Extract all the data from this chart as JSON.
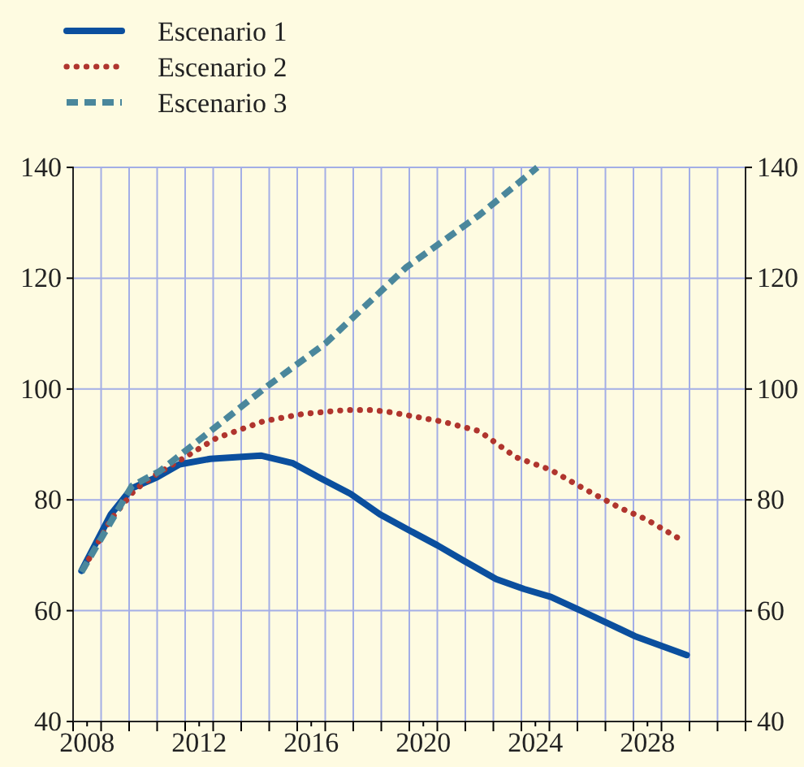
{
  "chart_data": {
    "type": "line",
    "xlim": [
      2007.5,
      2031.5
    ],
    "ylim": [
      40,
      140
    ],
    "yticks": [
      40,
      60,
      80,
      100,
      120,
      140
    ],
    "y2lim": [
      40,
      140
    ],
    "y2ticks": [
      40,
      60,
      80,
      100,
      120,
      140
    ],
    "xticks": [
      {
        "value": 2007.5,
        "label": null
      },
      2008,
      {
        "value": 2008.5,
        "label": null
      },
      {
        "value": 2009.5,
        "label": null
      },
      {
        "value": 2010.5,
        "label": null
      },
      {
        "value": 2011.5,
        "label": null
      },
      2012,
      {
        "value": 2012.5,
        "label": null
      },
      {
        "value": 2013.5,
        "label": null
      },
      {
        "value": 2014.5,
        "label": null
      },
      {
        "value": 2015.5,
        "label": null
      },
      2016,
      {
        "value": 2016.5,
        "label": null
      },
      {
        "value": 2017.5,
        "label": null
      },
      {
        "value": 2018.5,
        "label": null
      },
      {
        "value": 2019.5,
        "label": null
      },
      2020,
      {
        "value": 2020.5,
        "label": null
      },
      {
        "value": 2021.5,
        "label": null
      },
      {
        "value": 2022.5,
        "label": null
      },
      {
        "value": 2023.5,
        "label": null
      },
      2024,
      {
        "value": 2024.5,
        "label": null
      },
      {
        "value": 2025.5,
        "label": null
      },
      {
        "value": 2026.5,
        "label": null
      },
      {
        "value": 2027.5,
        "label": null
      },
      2028,
      {
        "value": 2028.5,
        "label": null
      },
      {
        "value": 2029.5,
        "label": null
      },
      {
        "value": 2030.5,
        "label": null
      },
      {
        "value": 2031.5,
        "label": null
      }
    ],
    "grid": true,
    "legend": "top left",
    "series": [
      {
        "name": "Escenario 1",
        "color": "#0b4f9e",
        "line_style": "solid",
        "x": [
          2007.8,
          2008.85,
          2009.6,
          2010.5,
          2011.3,
          2012.4,
          2014.2,
          2015.35,
          2016.3,
          2017.4,
          2018.45,
          2019.5,
          2020.5,
          2021.45,
          2022.6,
          2023.6,
          2024.55,
          2025.5,
          2026.6,
          2027.55,
          2029.4
        ],
        "values": [
          67.2,
          77.4,
          82.1,
          84.1,
          86.4,
          87.4,
          88,
          86.6,
          84.0,
          81.1,
          77.4,
          74.5,
          71.8,
          69.0,
          65.7,
          63.9,
          62.5,
          60.3,
          57.7,
          55.4,
          52
        ]
      },
      {
        "name": "Escenario 2",
        "color": "#b0352e",
        "line_style": "dotted",
        "x": [
          2007.9,
          2008.85,
          2009.7,
          2010.5,
          2011.4,
          2012.6,
          2014.3,
          2015.7,
          2017.2,
          2018.2,
          2018.85,
          2020.7,
          2022.0,
          2023.3,
          2024.55,
          2025.7,
          2027.0,
          2027.95,
          2029.2
        ],
        "values": [
          67.8,
          76.5,
          81.8,
          84.7,
          87.4,
          91.1,
          94.2,
          95.5,
          96.2,
          96.2,
          95.8,
          94.1,
          92.4,
          87.7,
          85.4,
          82.1,
          78.6,
          76.5,
          72.8
        ]
      },
      {
        "name": "Escenario 3",
        "color": "#4a879c",
        "line_style": "dashed",
        "x": [
          2007.8,
          2009.6,
          2010.6,
          2014.4,
          2016.5,
          2019.4,
          2022.0,
          2024.07
        ],
        "values": [
          67,
          82.5,
          85.2,
          100.4,
          108.2,
          122,
          131.4,
          140
        ]
      }
    ]
  }
}
